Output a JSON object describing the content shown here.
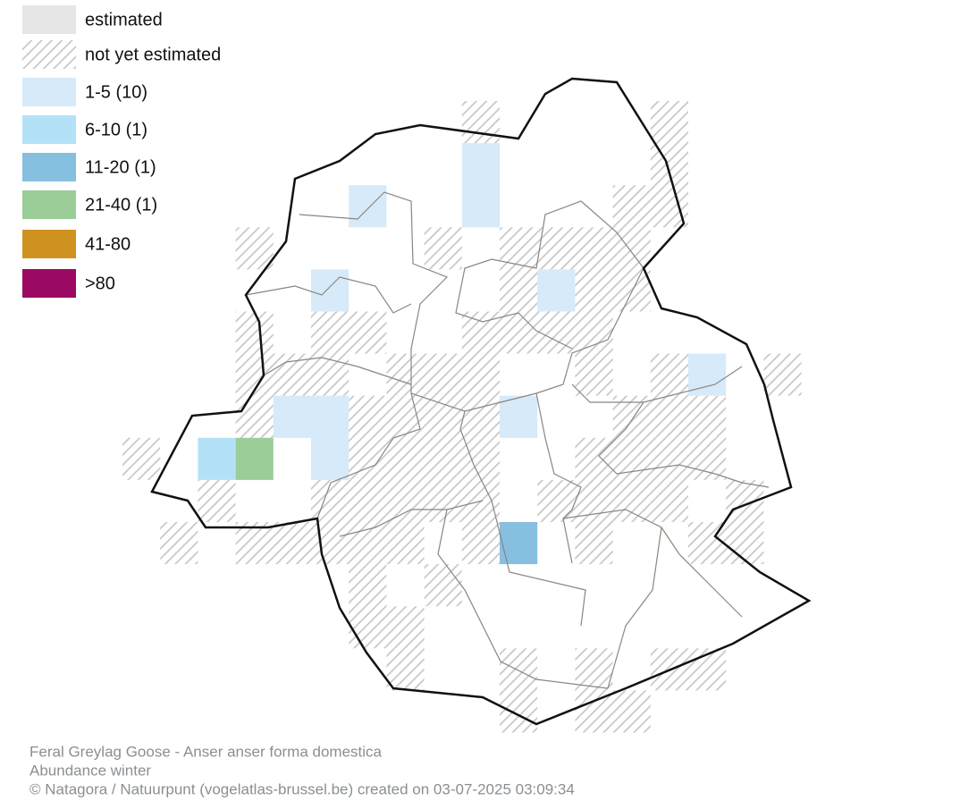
{
  "legend": [
    {
      "label": "estimated"
    },
    {
      "label": "not yet estimated"
    },
    {
      "label": "1-5 (10)"
    },
    {
      "label": "6-10 (1)"
    },
    {
      "label": "11-20 (1)"
    },
    {
      "label": "21-40 (1)"
    },
    {
      "label": "41-80"
    },
    {
      "label": ">80"
    }
  ],
  "footer": [
    "Feral Greylag Goose - Anser anser forma domestica",
    "Abundance winter",
    "© Natagora / Natuurpunt (vogelatlas-brussel.be) created on 03-07-2025 03:09:34"
  ]
}
